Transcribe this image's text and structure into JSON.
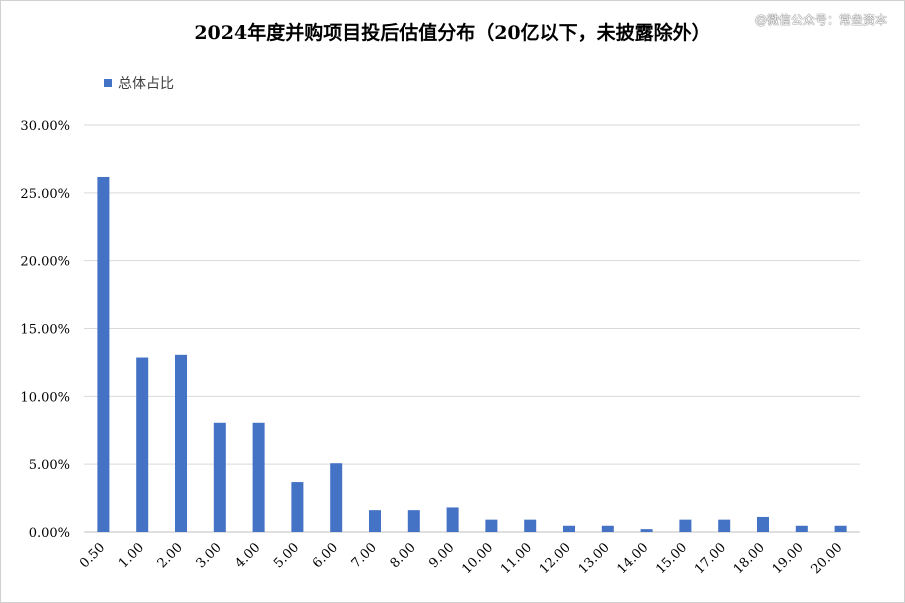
{
  "watermark": "@微信公众号：常垒资本",
  "chart_data": {
    "type": "bar",
    "title": "2024年度并购项目投后估值分布（20亿以下，未披露除外）",
    "xlabel": "",
    "ylabel": "",
    "categories": [
      "0.50",
      "1.00",
      "2.00",
      "3.00",
      "4.00",
      "5.00",
      "6.00",
      "7.00",
      "8.00",
      "9.00",
      "10.00",
      "11.00",
      "12.00",
      "13.00",
      "14.00",
      "15.00",
      "17.00",
      "18.00",
      "19.00",
      "20.00"
    ],
    "series": [
      {
        "name": "总体占比",
        "color": "#4472c4",
        "values": [
          0.2617,
          0.1286,
          0.1306,
          0.0805,
          0.0805,
          0.0368,
          0.0507,
          0.0161,
          0.0161,
          0.0181,
          0.0091,
          0.0091,
          0.0046,
          0.0046,
          0.0021,
          0.0091,
          0.0091,
          0.0111,
          0.0046,
          0.0046
        ]
      }
    ],
    "ylim": [
      0,
      0.3
    ],
    "yticks": [
      0,
      0.05,
      0.1,
      0.15,
      0.2,
      0.25,
      0.3
    ],
    "ytick_labels": [
      "0.00%",
      "5.00%",
      "10.00%",
      "15.00%",
      "20.00%",
      "25.00%",
      "30.00%"
    ],
    "grid": true,
    "legend_position": "top-left",
    "gridline_color": "#d9d9d9",
    "axis_line_color": "#bfbfbf"
  }
}
